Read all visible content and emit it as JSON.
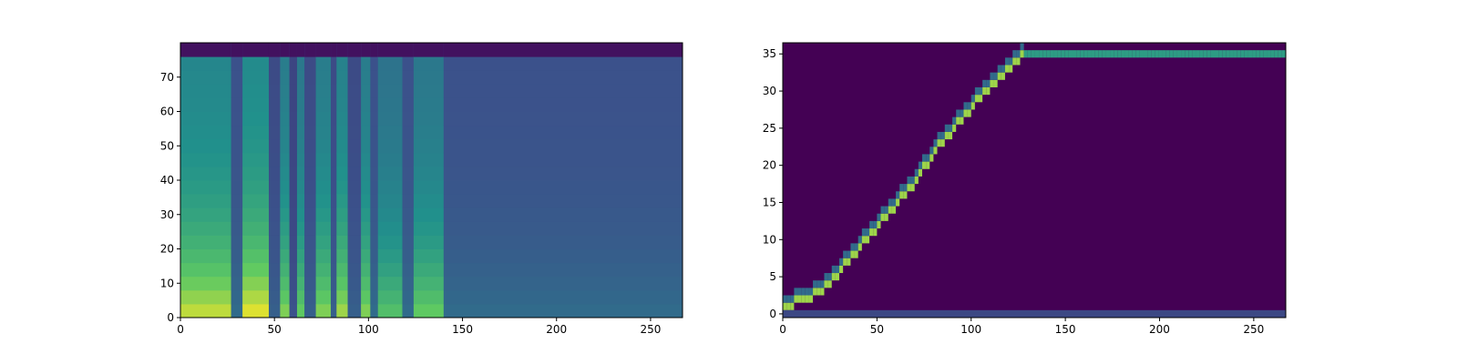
{
  "chart_data": [
    {
      "type": "heatmap",
      "colormap": "viridis",
      "grid": false,
      "xlim": [
        0,
        267
      ],
      "ylim": [
        0,
        80
      ],
      "xticks": [
        0,
        50,
        100,
        150,
        200,
        250
      ],
      "xtick_labels": [
        "0",
        "50",
        "100",
        "150",
        "200",
        "250"
      ],
      "yticks": [
        0,
        10,
        20,
        30,
        40,
        50,
        60,
        70
      ],
      "ytick_labels": [
        "0",
        "10",
        "20",
        "30",
        "40",
        "50",
        "60",
        "70"
      ],
      "bright_segments": [
        {
          "x_start": 0,
          "x_end": 27,
          "level": 0.9
        },
        {
          "x_start": 27,
          "x_end": 33,
          "level": 0.35
        },
        {
          "x_start": 33,
          "x_end": 47,
          "level": 0.95
        },
        {
          "x_start": 47,
          "x_end": 53,
          "level": 0.3
        },
        {
          "x_start": 53,
          "x_end": 58,
          "level": 0.8
        },
        {
          "x_start": 58,
          "x_end": 62,
          "level": 0.25
        },
        {
          "x_start": 62,
          "x_end": 66,
          "level": 0.75
        },
        {
          "x_start": 66,
          "x_end": 72,
          "level": 0.3
        },
        {
          "x_start": 72,
          "x_end": 80,
          "level": 0.8
        },
        {
          "x_start": 80,
          "x_end": 83,
          "level": 0.3
        },
        {
          "x_start": 83,
          "x_end": 89,
          "level": 0.85
        },
        {
          "x_start": 89,
          "x_end": 96,
          "level": 0.3
        },
        {
          "x_start": 96,
          "x_end": 101,
          "level": 0.8
        },
        {
          "x_start": 101,
          "x_end": 105,
          "level": 0.35
        },
        {
          "x_start": 105,
          "x_end": 118,
          "level": 0.7
        },
        {
          "x_start": 118,
          "x_end": 124,
          "level": 0.35
        },
        {
          "x_start": 124,
          "x_end": 140,
          "level": 0.75
        },
        {
          "x_start": 140,
          "x_end": 267,
          "level": 0.35
        }
      ]
    },
    {
      "type": "heatmap",
      "colormap": "viridis",
      "grid": false,
      "xlim": [
        0,
        267
      ],
      "ylim": [
        -0.5,
        36.5
      ],
      "xticks": [
        0,
        50,
        100,
        150,
        200,
        250
      ],
      "xtick_labels": [
        "0",
        "50",
        "100",
        "150",
        "200",
        "250"
      ],
      "yticks": [
        0,
        5,
        10,
        15,
        20,
        25,
        30,
        35
      ],
      "ytick_labels": [
        "0",
        "5",
        "10",
        "15",
        "20",
        "25",
        "30",
        "35"
      ],
      "alignment_path": {
        "x": [
          0,
          10,
          20,
          30,
          40,
          50,
          60,
          70,
          80,
          90,
          100,
          110,
          120,
          128,
          267
        ],
        "y": [
          1,
          2,
          3,
          6,
          9,
          12,
          15,
          18,
          22,
          25,
          28,
          31,
          33,
          35,
          35
        ]
      }
    }
  ]
}
